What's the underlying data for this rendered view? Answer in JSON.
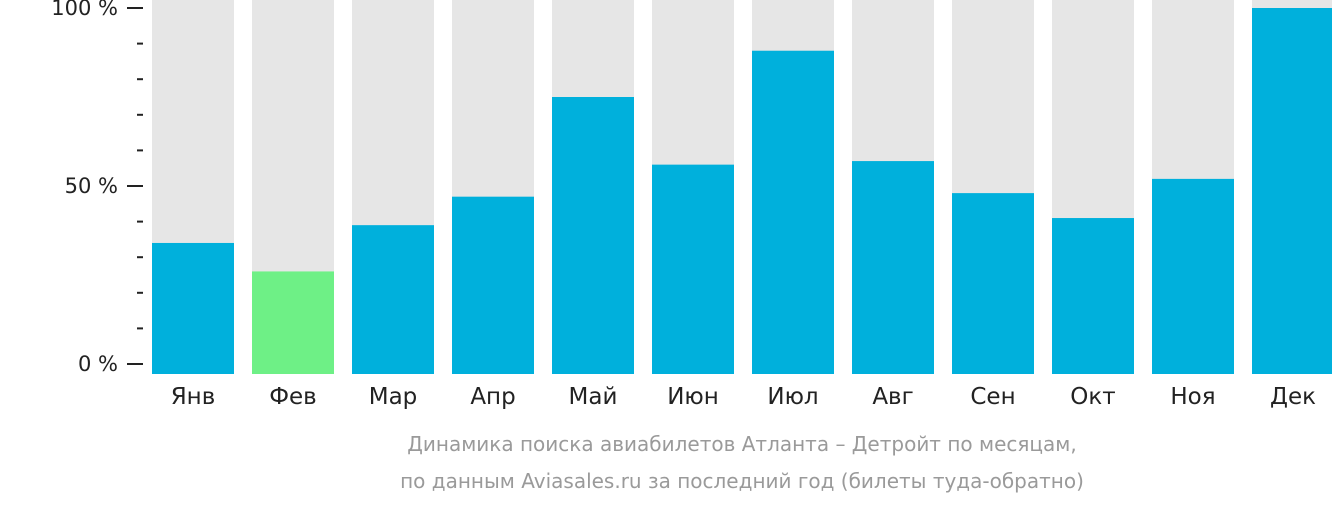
{
  "chart_data": {
    "type": "bar",
    "title": "Динамика поиска авиабилетов Атланта – Детройт по месяцам,",
    "subtitle": "по данным Aviasales.ru за последний год (билеты туда-обратно)",
    "categories": [
      "Янв",
      "Фев",
      "Мар",
      "Апр",
      "Май",
      "Июн",
      "Июл",
      "Авг",
      "Сен",
      "Окт",
      "Ноя",
      "Дек"
    ],
    "values": [
      34,
      26,
      39,
      47,
      75,
      56,
      88,
      57,
      48,
      41,
      52,
      100
    ],
    "highlight_index": 1,
    "ylim": [
      0,
      100
    ],
    "yticks": [
      {
        "value": 0,
        "label": "0 %"
      },
      {
        "value": 50,
        "label": "50 %"
      },
      {
        "value": 100,
        "label": "100 %"
      }
    ],
    "minor_ticks": [
      10,
      20,
      30,
      40,
      60,
      70,
      80,
      90
    ],
    "colors": {
      "bar": "#00b0dc",
      "highlight": "#6ef086",
      "track": "#e6e6e6",
      "axis": "#222222",
      "caption": "#9a9a9a"
    }
  }
}
